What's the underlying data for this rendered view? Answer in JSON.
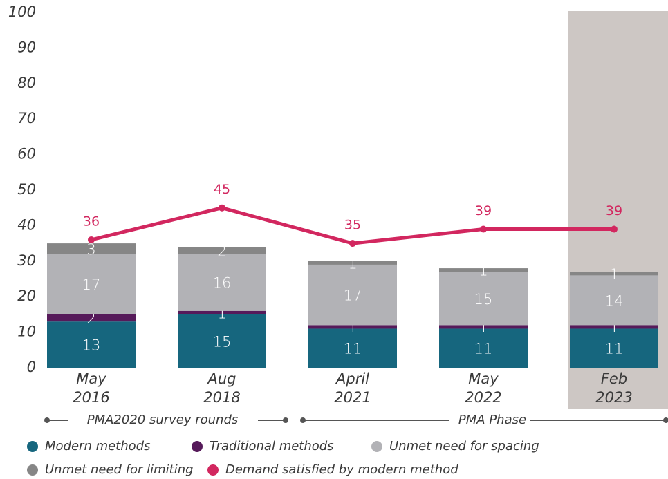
{
  "chart_data": {
    "type": "bar",
    "categories": [
      [
        "May",
        "2016"
      ],
      [
        "Aug",
        "2018"
      ],
      [
        "April",
        "2021"
      ],
      [
        "May",
        "2022"
      ],
      [
        "Feb",
        "2023"
      ]
    ],
    "series": [
      {
        "name": "Modern methods",
        "color": "#16667e",
        "values": [
          13,
          15,
          11,
          11,
          11
        ]
      },
      {
        "name": "Traditional methods",
        "color": "#561a5a",
        "values": [
          2,
          1,
          1,
          1,
          1
        ]
      },
      {
        "name": "Unmet need for spacing",
        "color": "#b2b2b6",
        "values": [
          17,
          16,
          17,
          15,
          14
        ]
      },
      {
        "name": "Unmet need for limiting",
        "color": "#868686",
        "values": [
          3,
          2,
          1,
          1,
          1
        ]
      },
      {
        "name": "Demand satisfied by modern method",
        "type": "line",
        "color": "#d2275f",
        "values": [
          36,
          45,
          35,
          39,
          39
        ]
      }
    ],
    "ylim": [
      0,
      100
    ],
    "yticks": [
      0,
      10,
      20,
      30,
      40,
      50,
      60,
      70,
      80,
      90,
      100
    ],
    "grid": false,
    "highlight_category": 4,
    "highlight_color": "#cdc7c4",
    "annotations": [
      "PMA2020 survey rounds",
      "PMA Phase"
    ]
  }
}
